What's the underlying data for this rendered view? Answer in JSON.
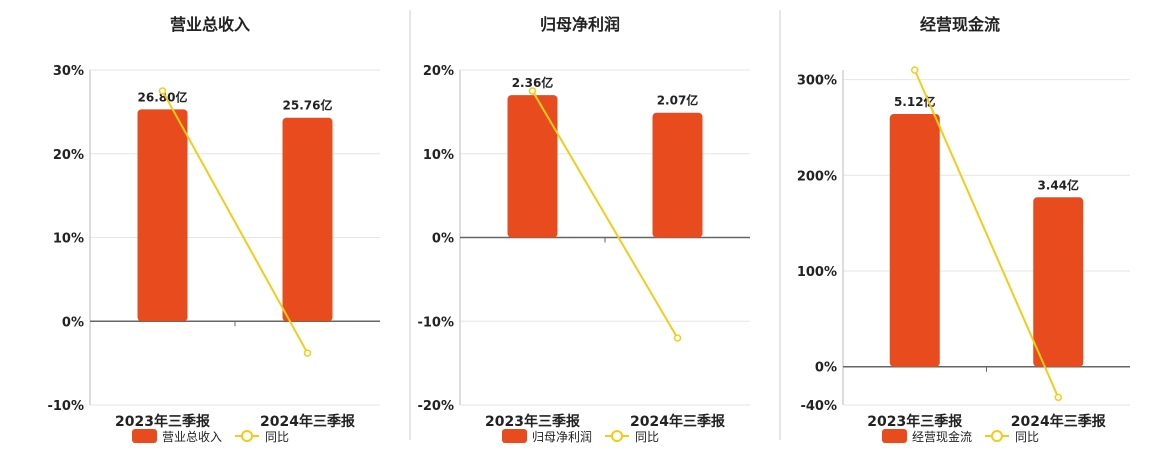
{
  "colors": {
    "bar": "#E84B1E",
    "line": "#F2CC1B",
    "grid": "#e6e6e6",
    "axis": "#666666",
    "divider": "#cfcfcf",
    "text": "#222222"
  },
  "chart_data": [
    {
      "type": "bar",
      "title": "营业总收入",
      "categories": [
        "2023年三季报",
        "2024年三季报"
      ],
      "series": [
        {
          "name": "营业总收入",
          "type": "bar",
          "values": [
            26.8,
            25.76
          ],
          "labels": [
            "26.80亿",
            "25.76亿"
          ]
        },
        {
          "name": "同比",
          "type": "line",
          "values": [
            27.5,
            -3.8
          ]
        }
      ],
      "ylim": [
        -10,
        30
      ],
      "yticks": [
        -10,
        0,
        10,
        20,
        30
      ],
      "ytick_labels": [
        "-10%",
        "0%",
        "10%",
        "20%",
        "30%"
      ],
      "bar_heights": [
        25.3,
        24.3
      ],
      "grid": true,
      "legend": "bottom"
    },
    {
      "type": "bar",
      "title": "归母净利润",
      "categories": [
        "2023年三季报",
        "2024年三季报"
      ],
      "series": [
        {
          "name": "归母净利润",
          "type": "bar",
          "values": [
            2.36,
            2.07
          ],
          "labels": [
            "2.36亿",
            "2.07亿"
          ]
        },
        {
          "name": "同比",
          "type": "line",
          "values": [
            17.5,
            -12.0
          ]
        }
      ],
      "ylim": [
        -20,
        20
      ],
      "yticks": [
        -20,
        -10,
        0,
        10,
        20
      ],
      "ytick_labels": [
        "-20%",
        "-10%",
        "0%",
        "10%",
        "20%"
      ],
      "bar_heights": [
        17.0,
        14.9
      ],
      "grid": true,
      "legend": "bottom"
    },
    {
      "type": "bar",
      "title": "经营现金流",
      "categories": [
        "2023年三季报",
        "2024年三季报"
      ],
      "series": [
        {
          "name": "经营现金流",
          "type": "bar",
          "values": [
            5.12,
            3.44
          ],
          "labels": [
            "5.12亿",
            "3.44亿"
          ]
        },
        {
          "name": "同比",
          "type": "line",
          "values": [
            310,
            -32
          ]
        }
      ],
      "ylim": [
        -40,
        310
      ],
      "yticks": [
        -40,
        0,
        100,
        200,
        300
      ],
      "ytick_labels": [
        "-40%",
        "0%",
        "100%",
        "200%",
        "300%"
      ],
      "bar_heights": [
        264,
        177
      ],
      "grid": true,
      "legend": "bottom"
    }
  ]
}
